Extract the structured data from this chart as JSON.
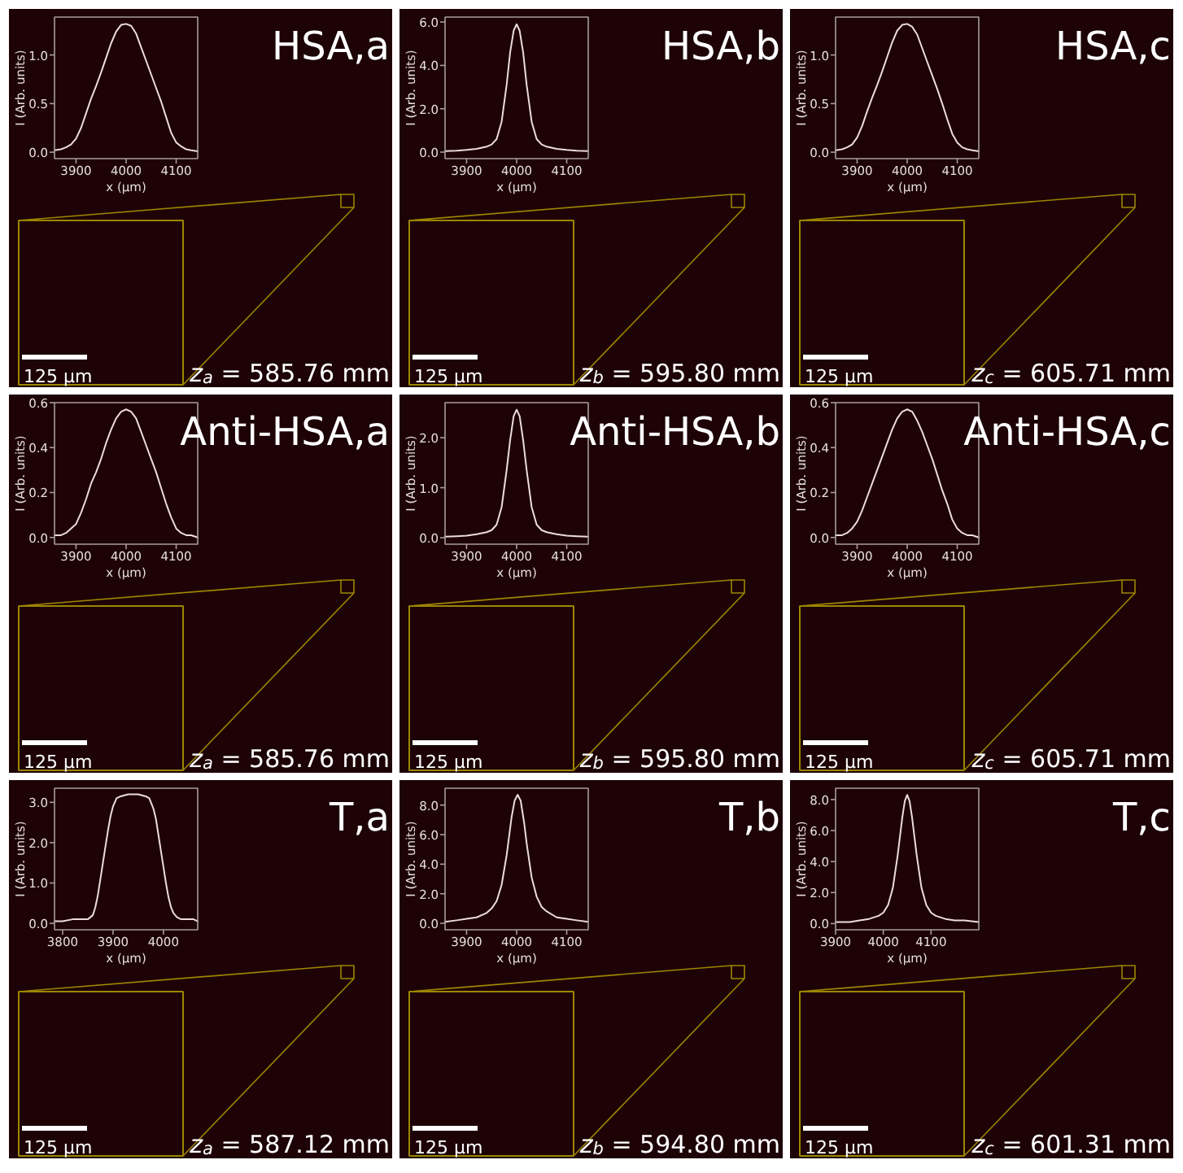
{
  "chart_data": [
    {
      "type": "line",
      "xlabel": "x (μm)",
      "ylabel": "I (Arb. units)",
      "annotations": [
        "HSA,a",
        "z$_{a}$ = 585.76 mm",
        "125 μm"
      ],
      "xlim": [
        3857,
        4143
      ],
      "ylim": [
        -0.066,
        1.39
      ],
      "xticks": [
        3900,
        4000,
        4100
      ],
      "yticks": [
        {
          "value": 0,
          "label": "0.0"
        },
        0.5,
        {
          "value": 1,
          "label": "1.0"
        }
      ],
      "x": [
        3857,
        3870,
        3880,
        3890,
        3900,
        3910,
        3920,
        3930,
        3940,
        3950,
        3960,
        3970,
        3980,
        3990,
        4000,
        4010,
        4020,
        4030,
        4040,
        4050,
        4060,
        4070,
        4080,
        4090,
        4100,
        4110,
        4120,
        4130,
        4143
      ],
      "series": [
        {
          "color": "#ecdcdc",
          "values": [
            0.02,
            0.03,
            0.05,
            0.08,
            0.14,
            0.25,
            0.4,
            0.55,
            0.68,
            0.82,
            0.97,
            1.12,
            1.24,
            1.31,
            1.32,
            1.3,
            1.22,
            1.08,
            0.94,
            0.8,
            0.66,
            0.52,
            0.36,
            0.2,
            0.1,
            0.06,
            0.03,
            0.02,
            0.01
          ]
        }
      ]
    },
    {
      "type": "line",
      "xlabel": "x (μm)",
      "ylabel": "I (Arb. units)",
      "annotations": [
        "HSA,b",
        "z$_{b}$ = 595.80 mm",
        "125 μm"
      ],
      "xlim": [
        3857,
        4143
      ],
      "ylim": [
        -0.3,
        6.23
      ],
      "xticks": [
        3900,
        4000,
        4100
      ],
      "yticks": [
        {
          "value": 0,
          "label": "0.0"
        },
        {
          "value": 2,
          "label": "2.0"
        },
        {
          "value": 4,
          "label": "4.0"
        },
        {
          "value": 6,
          "label": "6.0"
        }
      ],
      "x": [
        3857,
        3880,
        3900,
        3920,
        3940,
        3950,
        3960,
        3970,
        3980,
        3987,
        3994,
        4000,
        4006,
        4013,
        4020,
        4030,
        4040,
        4050,
        4060,
        4080,
        4100,
        4120,
        4143
      ],
      "series": [
        {
          "color": "#ecdcdc",
          "values": [
            0.05,
            0.07,
            0.1,
            0.15,
            0.25,
            0.35,
            0.6,
            1.4,
            3.1,
            4.6,
            5.6,
            5.9,
            5.6,
            4.6,
            3.1,
            1.4,
            0.6,
            0.35,
            0.25,
            0.15,
            0.1,
            0.07,
            0.05
          ]
        }
      ]
    },
    {
      "type": "line",
      "xlabel": "x (μm)",
      "ylabel": "I (Arb. units)",
      "annotations": [
        "HSA,c",
        "z$_{c}$ = 605.71 mm",
        "125 μm"
      ],
      "xlim": [
        3857,
        4143
      ],
      "ylim": [
        -0.066,
        1.39
      ],
      "xticks": [
        3900,
        4000,
        4100
      ],
      "yticks": [
        {
          "value": 0,
          "label": "0.0"
        },
        0.5,
        {
          "value": 1,
          "label": "1.0"
        }
      ],
      "x": [
        3857,
        3870,
        3880,
        3890,
        3900,
        3910,
        3920,
        3930,
        3940,
        3950,
        3960,
        3970,
        3980,
        3990,
        4000,
        4010,
        4020,
        4030,
        4040,
        4050,
        4060,
        4070,
        4080,
        4090,
        4100,
        4110,
        4120,
        4130,
        4143
      ],
      "series": [
        {
          "color": "#ecdcdc",
          "values": [
            0.02,
            0.03,
            0.05,
            0.08,
            0.15,
            0.27,
            0.42,
            0.56,
            0.69,
            0.83,
            0.98,
            1.13,
            1.25,
            1.31,
            1.32,
            1.29,
            1.21,
            1.07,
            0.93,
            0.79,
            0.65,
            0.5,
            0.34,
            0.19,
            0.1,
            0.05,
            0.03,
            0.02,
            0.01
          ]
        }
      ]
    },
    {
      "type": "line",
      "xlabel": "x (μm)",
      "ylabel": "I (Arb. units)",
      "annotations": [
        "Anti-HSA,a",
        "z$_{a}$ = 585.76 mm",
        "125 μm"
      ],
      "xlim": [
        3857,
        4143
      ],
      "ylim": [
        -0.03,
        0.6
      ],
      "xticks": [
        3900,
        4000,
        4100
      ],
      "yticks": [
        {
          "value": 0,
          "label": "0.0"
        },
        0.2,
        0.4,
        0.6
      ],
      "x": [
        3857,
        3870,
        3880,
        3890,
        3900,
        3910,
        3920,
        3930,
        3940,
        3950,
        3960,
        3970,
        3980,
        3990,
        4000,
        4010,
        4020,
        4030,
        4040,
        4050,
        4060,
        4070,
        4080,
        4090,
        4100,
        4110,
        4120,
        4130,
        4143
      ],
      "series": [
        {
          "color": "#ecdcdc",
          "values": [
            0.01,
            0.01,
            0.02,
            0.04,
            0.06,
            0.11,
            0.17,
            0.24,
            0.29,
            0.35,
            0.42,
            0.48,
            0.53,
            0.56,
            0.57,
            0.56,
            0.53,
            0.47,
            0.41,
            0.35,
            0.29,
            0.22,
            0.15,
            0.09,
            0.04,
            0.02,
            0.01,
            0.01,
            0.0
          ]
        }
      ]
    },
    {
      "type": "line",
      "xlabel": "x (μm)",
      "ylabel": "I (Arb. units)",
      "annotations": [
        "Anti-HSA,b",
        "z$_{b}$ = 595.80 mm",
        "125 μm"
      ],
      "xlim": [
        3857,
        4143
      ],
      "ylim": [
        -0.13,
        2.7
      ],
      "xticks": [
        3900,
        4000,
        4100
      ],
      "yticks": [
        {
          "value": 0,
          "label": "0.0"
        },
        {
          "value": 1,
          "label": "1.0"
        },
        {
          "value": 2,
          "label": "2.0"
        }
      ],
      "x": [
        3857,
        3880,
        3900,
        3920,
        3940,
        3950,
        3960,
        3970,
        3980,
        3987,
        3994,
        4000,
        4006,
        4013,
        4020,
        4030,
        4040,
        4050,
        4060,
        4080,
        4100,
        4120,
        4143
      ],
      "series": [
        {
          "color": "#ecdcdc",
          "values": [
            0.02,
            0.03,
            0.04,
            0.07,
            0.11,
            0.15,
            0.26,
            0.61,
            1.35,
            1.95,
            2.43,
            2.56,
            2.43,
            1.95,
            1.35,
            0.61,
            0.26,
            0.15,
            0.11,
            0.07,
            0.04,
            0.03,
            0.02
          ]
        }
      ]
    },
    {
      "type": "line",
      "xlabel": "x (μm)",
      "ylabel": "I (Arb. units)",
      "annotations": [
        "Anti-HSA,c",
        "z$_{c}$ = 605.71 mm",
        "125 μm"
      ],
      "xlim": [
        3857,
        4143
      ],
      "ylim": [
        -0.03,
        0.6
      ],
      "xticks": [
        3900,
        4000,
        4100
      ],
      "yticks": [
        {
          "value": 0,
          "label": "0.0"
        },
        0.2,
        0.4,
        0.6
      ],
      "x": [
        3857,
        3870,
        3880,
        3890,
        3900,
        3910,
        3920,
        3930,
        3940,
        3950,
        3960,
        3970,
        3980,
        3990,
        4000,
        4010,
        4020,
        4030,
        4040,
        4050,
        4060,
        4070,
        4080,
        4090,
        4100,
        4110,
        4120,
        4130,
        4143
      ],
      "series": [
        {
          "color": "#ecdcdc",
          "values": [
            0.01,
            0.01,
            0.02,
            0.04,
            0.07,
            0.12,
            0.18,
            0.24,
            0.3,
            0.36,
            0.42,
            0.48,
            0.53,
            0.56,
            0.57,
            0.56,
            0.52,
            0.47,
            0.41,
            0.35,
            0.28,
            0.21,
            0.15,
            0.08,
            0.04,
            0.02,
            0.01,
            0.01,
            0.0
          ]
        }
      ]
    },
    {
      "type": "line",
      "xlabel": "x (μm)",
      "ylabel": "I (Arb. units)",
      "annotations": [
        "T,a",
        "z$_{a}$ = 587.12 mm",
        "125 μm"
      ],
      "xlim": [
        3784,
        4068
      ],
      "ylim": [
        -0.16,
        3.35
      ],
      "xticks": [
        3800,
        3900,
        4000
      ],
      "yticks": [
        {
          "value": 0,
          "label": "0.0"
        },
        {
          "value": 1,
          "label": "1.0"
        },
        {
          "value": 2,
          "label": "2.0"
        },
        {
          "value": 3,
          "label": "3.0"
        }
      ],
      "x": [
        3784,
        3800,
        3820,
        3835,
        3850,
        3860,
        3865,
        3870,
        3875,
        3880,
        3885,
        3890,
        3895,
        3900,
        3907,
        3915,
        3930,
        3950,
        3965,
        3972,
        3980,
        3985,
        3990,
        3995,
        4000,
        4005,
        4010,
        4015,
        4020,
        4027,
        4035,
        4050,
        4060,
        4068
      ],
      "series": [
        {
          "color": "#ecdcdc",
          "values": [
            0.05,
            0.05,
            0.1,
            0.1,
            0.1,
            0.2,
            0.4,
            0.7,
            1.1,
            1.5,
            1.9,
            2.3,
            2.65,
            2.9,
            3.1,
            3.15,
            3.2,
            3.2,
            3.15,
            3.1,
            2.85,
            2.6,
            2.2,
            1.8,
            1.4,
            1.0,
            0.65,
            0.4,
            0.25,
            0.15,
            0.1,
            0.1,
            0.1,
            0.05
          ]
        }
      ]
    },
    {
      "type": "line",
      "xlabel": "x (μm)",
      "ylabel": "I (Arb. units)",
      "annotations": [
        "T,b",
        "z$_{b}$ = 594.80 mm",
        "125 μm"
      ],
      "xlim": [
        3857,
        4143
      ],
      "ylim": [
        -0.44,
        9.14
      ],
      "xticks": [
        3900,
        4000,
        4100
      ],
      "yticks": [
        {
          "value": 0,
          "label": "0.0"
        },
        {
          "value": 2,
          "label": "2.0"
        },
        {
          "value": 4,
          "label": "4.0"
        },
        {
          "value": 6,
          "label": "6.0"
        },
        {
          "value": 8,
          "label": "8.0"
        }
      ],
      "x": [
        3857,
        3880,
        3900,
        3920,
        3940,
        3950,
        3960,
        3970,
        3980,
        3990,
        3996,
        4002,
        4008,
        4015,
        4020,
        4030,
        4040,
        4050,
        4060,
        4080,
        4100,
        4120,
        4143
      ],
      "series": [
        {
          "color": "#ecdcdc",
          "values": [
            0.1,
            0.2,
            0.3,
            0.4,
            0.7,
            1.0,
            1.5,
            2.6,
            4.6,
            7.2,
            8.3,
            8.7,
            8.3,
            6.8,
            5.4,
            3.1,
            1.8,
            1.1,
            0.8,
            0.4,
            0.3,
            0.2,
            0.1
          ]
        }
      ]
    },
    {
      "type": "line",
      "xlabel": "x (μm)",
      "ylabel": "I (Arb. units)",
      "annotations": [
        "T,c",
        "z$_{c}$ = 601.31 mm",
        "125 μm"
      ],
      "xlim": [
        3900,
        4200
      ],
      "ylim": [
        -0.4,
        8.73
      ],
      "xticks": [
        3900,
        4000,
        4100
      ],
      "yticks": [
        {
          "value": 0,
          "label": "0.0"
        },
        {
          "value": 2,
          "label": "2.0"
        },
        {
          "value": 4,
          "label": "4.0"
        },
        {
          "value": 6,
          "label": "6.0"
        },
        {
          "value": 8,
          "label": "8.0"
        }
      ],
      "x": [
        3900,
        3930,
        3950,
        3970,
        3990,
        4000,
        4010,
        4020,
        4030,
        4040,
        4045,
        4050,
        4055,
        4060,
        4070,
        4080,
        4090,
        4100,
        4110,
        4130,
        4150,
        4170,
        4200
      ],
      "series": [
        {
          "color": "#ecdcdc",
          "values": [
            0.1,
            0.1,
            0.2,
            0.3,
            0.5,
            0.7,
            1.2,
            2.3,
            4.4,
            6.9,
            7.9,
            8.3,
            7.9,
            6.9,
            4.4,
            2.3,
            1.2,
            0.7,
            0.5,
            0.3,
            0.2,
            0.2,
            0.1
          ]
        }
      ]
    }
  ]
}
